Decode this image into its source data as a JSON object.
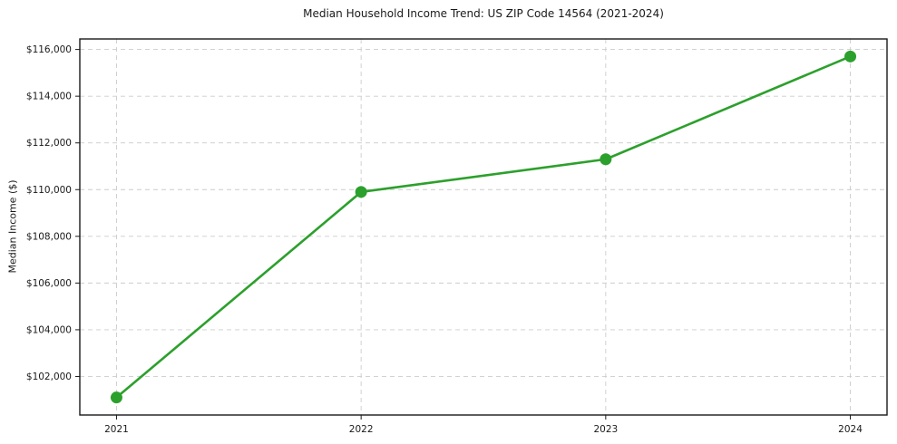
{
  "chart_data": {
    "type": "line",
    "title": "Median Household Income Trend: US ZIP Code 14564 (2021-2024)",
    "xlabel": "",
    "ylabel": "Median Income ($)",
    "categories": [
      "2021",
      "2022",
      "2023",
      "2024"
    ],
    "values": [
      101100,
      109900,
      111300,
      115700
    ],
    "series_name": "Median Household Income",
    "y_ticks": [
      102000,
      104000,
      106000,
      108000,
      110000,
      112000,
      114000,
      116000
    ],
    "y_tick_labels": [
      "$102,000",
      "$104,000",
      "$106,000",
      "$108,000",
      "$110,000",
      "$112,000",
      "$114,000",
      "$116,000"
    ],
    "ylim": [
      100350,
      116450
    ],
    "xlim": [
      -0.15,
      3.15
    ],
    "grid": true,
    "grid_style": "dashed",
    "legend_position": "none",
    "line_color": "#2ca02c",
    "grid_color": "#cccccc",
    "frame_color": "#1a1a1a",
    "background_color": "#ffffff",
    "marker": "circle",
    "marker_radius": 6.5
  }
}
